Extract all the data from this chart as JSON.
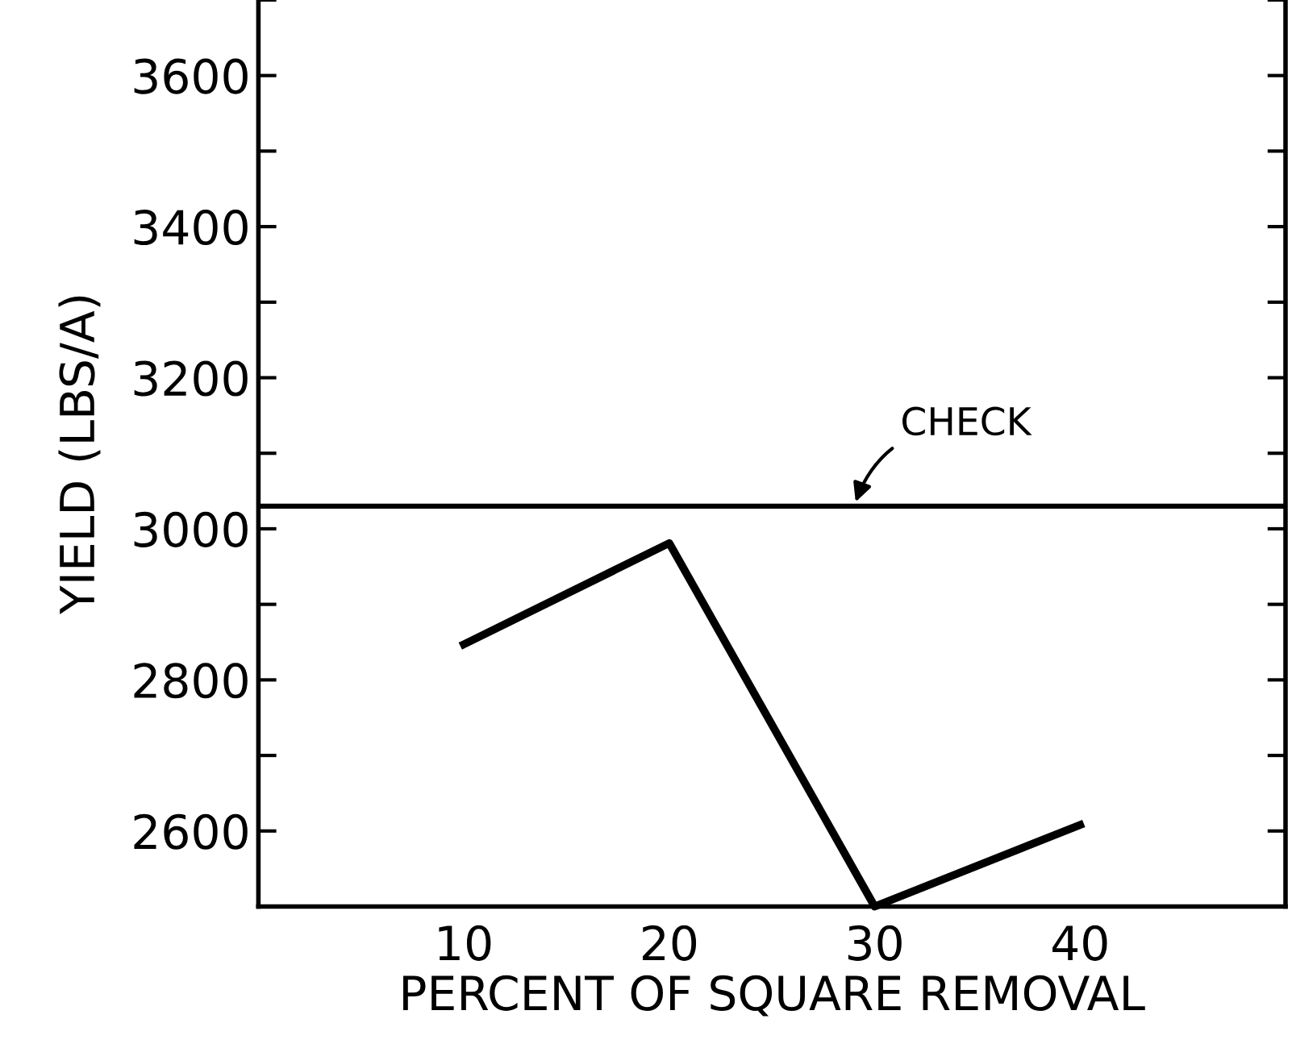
{
  "chart_data": {
    "type": "line",
    "xlabel": "PERCENT OF SQUARE REMOVAL",
    "ylabel": "YIELD (LBS/A)",
    "x": [
      10,
      20,
      30,
      40
    ],
    "series": [
      {
        "color": "#000000",
        "values": [
          2847,
          2981,
          2500,
          2608
        ]
      }
    ],
    "xlim": [
      0,
      50
    ],
    "xticks": [
      10,
      20,
      30,
      40
    ],
    "ylim": [
      2500,
      3700
    ],
    "yticks": [
      {
        "value": 2500,
        "label": null
      },
      2600,
      {
        "value": 2700,
        "label": null
      },
      2800,
      {
        "value": 2900,
        "label": null
      },
      3000,
      {
        "value": 3100,
        "label": null
      },
      3200,
      {
        "value": 3300,
        "label": null
      },
      3400,
      {
        "value": 3500,
        "label": null
      },
      3600,
      {
        "value": 3700,
        "label": null
      }
    ],
    "ref_lines": [
      {
        "axis": "y",
        "value": 3030,
        "label": "CHECK",
        "color": "#000000"
      }
    ],
    "grid": false,
    "legend": false,
    "marker": "none",
    "line_style": "solid"
  }
}
